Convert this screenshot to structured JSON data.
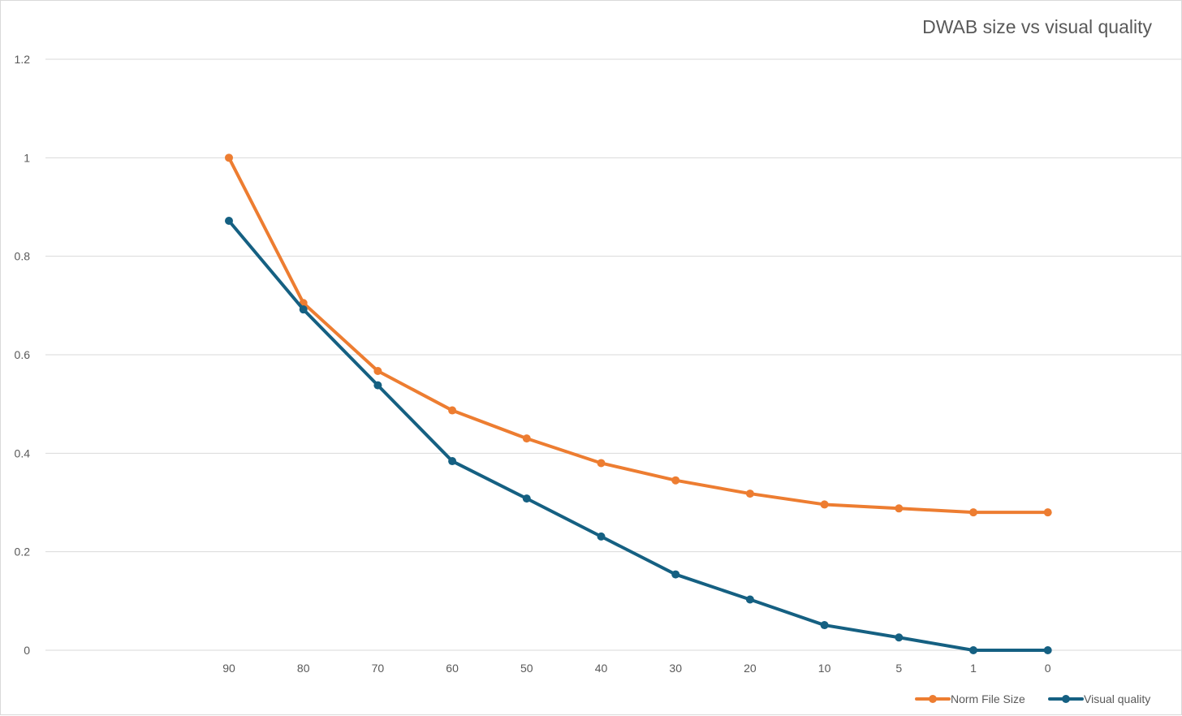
{
  "chart_data": {
    "type": "line",
    "title": "DWAB size vs visual quality",
    "xlabel": "",
    "ylabel": "",
    "categories": [
      "90",
      "80",
      "70",
      "60",
      "50",
      "40",
      "30",
      "20",
      "10",
      "5",
      "1",
      "0"
    ],
    "ylim": [
      0,
      1.2
    ],
    "yticks": [
      "0",
      "0.2",
      "0.4",
      "0.6",
      "0.8",
      "1",
      "1.2"
    ],
    "grid": true,
    "legend_position": "bottom-right",
    "series": [
      {
        "name": "Norm File Size",
        "color": "#ED7D31",
        "values": [
          1.0,
          0.705,
          0.567,
          0.487,
          0.43,
          0.38,
          0.345,
          0.318,
          0.296,
          0.288,
          0.28,
          0.28
        ]
      },
      {
        "name": "Visual quality",
        "color": "#156082",
        "values": [
          0.872,
          0.692,
          0.538,
          0.384,
          0.308,
          0.231,
          0.154,
          0.103,
          0.051,
          0.026,
          0.0,
          0.0
        ]
      }
    ]
  }
}
